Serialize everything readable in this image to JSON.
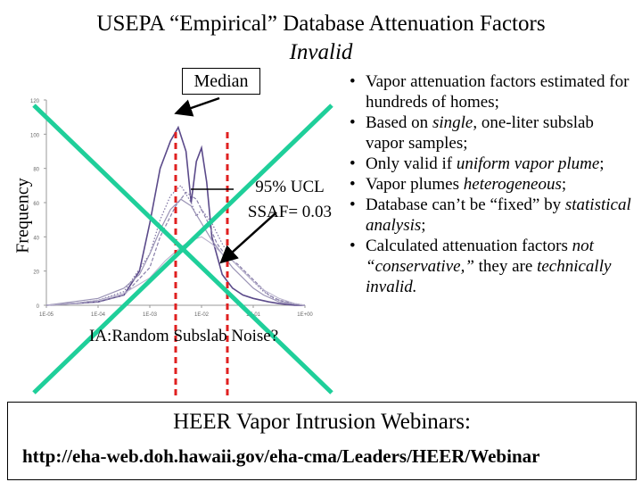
{
  "title_line1": "USEPA “Empirical” Database Attenuation Factors",
  "title_line2": "Invalid",
  "median_label": "Median",
  "ucl_line1": "95% UCL",
  "ucl_line2": "SSAF= 0.03",
  "ia_label": "IA:Random Subslab Noise?",
  "bullets": [
    {
      "parts": [
        {
          "t": "Vapor attenuation factors estimated for hundreds of homes;",
          "i": false
        }
      ]
    },
    {
      "parts": [
        {
          "t": "Based on ",
          "i": false
        },
        {
          "t": "single",
          "i": true
        },
        {
          "t": ", one-liter subslab vapor samples;",
          "i": false
        }
      ]
    },
    {
      "parts": [
        {
          "t": "Only valid if ",
          "i": false
        },
        {
          "t": "uniform vapor plume",
          "i": true
        },
        {
          "t": ";",
          "i": false
        }
      ]
    },
    {
      "parts": [
        {
          "t": "Vapor plumes ",
          "i": false
        },
        {
          "t": "heterogeneous",
          "i": true
        },
        {
          "t": ";",
          "i": false
        }
      ]
    },
    {
      "parts": [
        {
          "t": "Database can’t be “fixed” by ",
          "i": false
        },
        {
          "t": "statistical analysis",
          "i": true
        },
        {
          "t": ";",
          "i": false
        }
      ]
    },
    {
      "parts": [
        {
          "t": "Calculated attenuation factors ",
          "i": false
        },
        {
          "t": "not “conservative,”",
          "i": true
        },
        {
          "t": " they are ",
          "i": false
        },
        {
          "t": "technically invalid.",
          "i": true
        }
      ]
    }
  ],
  "footer_line1": "HEER Vapor Intrusion Webinars:",
  "footer_line2": "http://eha-web.doh.hawaii.gov/eha-cma/Leaders/HEER/Webinar",
  "chart_data": {
    "type": "line",
    "ylabel": "Frequency",
    "ylim": [
      0,
      120
    ],
    "y_ticks": [
      "0",
      "20",
      "40",
      "60",
      "80",
      "100",
      "120"
    ],
    "x_ticks": [
      "1E-05",
      "1E-04",
      "1E-03",
      "1E-02",
      "1E-01",
      "1E+00"
    ],
    "x_log_exponents": [
      -5,
      -4,
      -3,
      -2,
      -1,
      0
    ],
    "series": [
      {
        "style": "solid-dark",
        "x": [
          -5.0,
          -4.5,
          -4.0,
          -3.5,
          -3.2,
          -3.0,
          -2.8,
          -2.6,
          -2.45,
          -2.3,
          -2.2,
          -2.1,
          -2.0,
          -1.9,
          -1.8,
          -1.6,
          -1.4,
          -1.2,
          -1.0,
          -0.7,
          -0.5,
          -0.2,
          0.0
        ],
        "y": [
          0,
          1,
          2,
          6,
          20,
          48,
          80,
          96,
          104,
          90,
          60,
          84,
          92,
          72,
          40,
          18,
          10,
          6,
          4,
          2,
          1,
          0,
          0
        ]
      },
      {
        "style": "dotted",
        "x": [
          -5.0,
          -4.5,
          -4.0,
          -3.5,
          -3.0,
          -2.8,
          -2.6,
          -2.4,
          -2.2,
          -2.1,
          -2.0,
          -1.8,
          -1.6,
          -1.4,
          -1.2,
          -1.0,
          -0.8,
          -0.6,
          -0.3,
          0.0
        ],
        "y": [
          0,
          1,
          3,
          8,
          30,
          50,
          64,
          70,
          60,
          52,
          56,
          48,
          36,
          26,
          20,
          14,
          8,
          4,
          1,
          0
        ]
      },
      {
        "style": "dashed",
        "x": [
          -5.0,
          -4.5,
          -4.0,
          -3.5,
          -3.0,
          -2.8,
          -2.5,
          -2.3,
          -2.1,
          -1.9,
          -1.7,
          -1.5,
          -1.3,
          -1.1,
          -0.9,
          -0.7,
          -0.5,
          -0.2,
          0.0
        ],
        "y": [
          0,
          1,
          2,
          6,
          22,
          40,
          58,
          66,
          62,
          50,
          36,
          28,
          24,
          18,
          12,
          6,
          3,
          1,
          0
        ]
      },
      {
        "style": "solid-gray",
        "x": [
          -5.0,
          -4.5,
          -4.0,
          -3.5,
          -3.2,
          -3.0,
          -2.8,
          -2.6,
          -2.4,
          -2.2,
          -2.0,
          -1.8,
          -1.6,
          -1.4,
          -1.2,
          -1.0,
          -0.8,
          -0.5,
          0.0
        ],
        "y": [
          0,
          2,
          4,
          10,
          18,
          30,
          44,
          56,
          62,
          58,
          48,
          38,
          30,
          22,
          16,
          10,
          6,
          2,
          0
        ]
      },
      {
        "style": "solid-light",
        "x": [
          -5.0,
          -4.5,
          -4.0,
          -3.5,
          -3.0,
          -2.7,
          -2.4,
          -2.2,
          -2.0,
          -1.8,
          -1.6,
          -1.4,
          -1.2,
          -1.0,
          -0.8,
          -0.5,
          -0.2,
          0.0
        ],
        "y": [
          0,
          1,
          3,
          7,
          16,
          26,
          34,
          38,
          40,
          36,
          30,
          26,
          20,
          14,
          9,
          4,
          1,
          0
        ]
      }
    ],
    "markers": [
      {
        "name": "median",
        "x": -2.5
      },
      {
        "name": "95% UCL",
        "x": -1.5
      }
    ]
  }
}
